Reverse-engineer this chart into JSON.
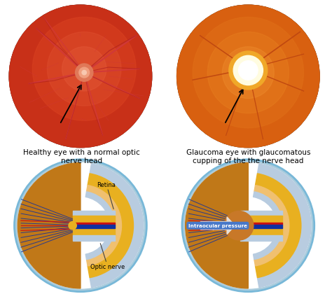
{
  "bg_color": "#ffffff",
  "fig_width": 4.74,
  "fig_height": 4.31,
  "top_left_label": "Healthy eye with a normal optic\nnerve head",
  "top_right_label": "Glaucoma eye with glaucomatous\ncupping of the the nerve head",
  "bottom_left_annotation": "Retina",
  "bottom_left_annotation2": "Optic nerve",
  "bottom_right_annotation": "Intraocular pressure",
  "label_fontsize": 7.5,
  "annotation_fontsize": 6.0,
  "vitreous_color": "#b87820",
  "sclera_blue": "#adc8e0",
  "choroid_yellow": "#e8b820",
  "retina_orange": "#e89040",
  "nerve_red": "#cc1010",
  "nerve_blue": "#1030a0",
  "nerve_dark_blue": "#102080",
  "cup_white": "#f5f0e8",
  "glaucoma_cup_brown": "#c87828",
  "pressure_arrow_color": "#e8e8e8",
  "pressure_text_color": "#ffffff",
  "pressure_box_color": "#4878c8",
  "eye_border_color": "#78b8d8"
}
